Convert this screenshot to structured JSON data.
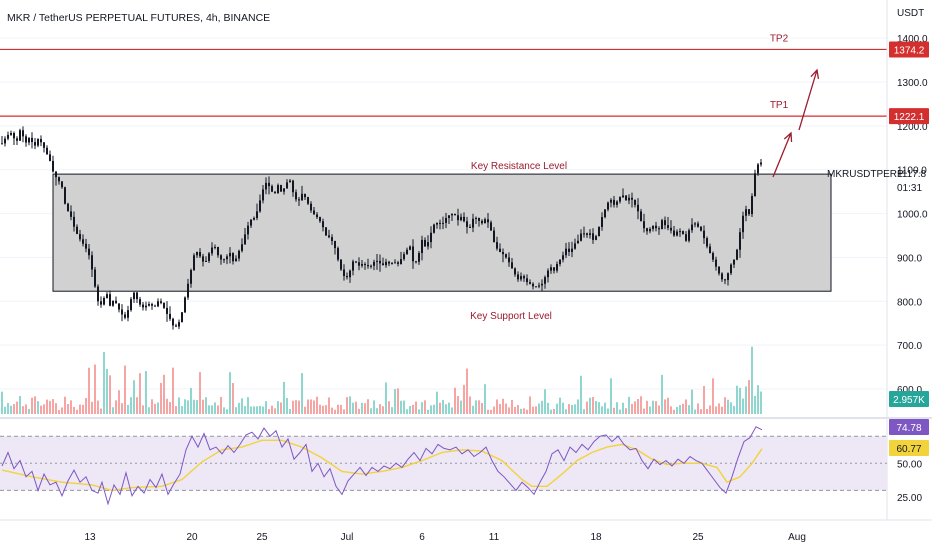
{
  "header": {
    "symbol_title": "MKR / TetherUS PERPETUAL FUTURES, 4h, BINANCE",
    "currency": "USDT"
  },
  "colors": {
    "up": "#26a69a",
    "down": "#ef5350",
    "candle": "#131722",
    "level_line": "#d32f2f",
    "arrow": "#9c1b2e",
    "zone_fill": "#d1d1d1",
    "rsi_line": "#7e57c2",
    "rsi_ma": "#f2d33b",
    "rsi_band": "#ede7f6"
  },
  "chart_data": {
    "type": "candlestick",
    "price_axis_ticks": [
      "1400.0",
      "1300.0",
      "1200.0",
      "1100.0",
      "1000.0",
      "900.0",
      "800.0",
      "700.0",
      "600.0"
    ],
    "time_axis_ticks": [
      "13",
      "20",
      "25",
      "Jul",
      "6",
      "11",
      "18",
      "25",
      "Aug"
    ],
    "price_range": [
      575,
      1455
    ],
    "last_price": {
      "label": "MKRUSDTPERP",
      "value": "1117.8",
      "countdown": "01:31"
    },
    "levels": [
      {
        "name": "TP2",
        "value": 1374.2,
        "label": "1374.2"
      },
      {
        "name": "TP1",
        "value": 1222.1,
        "label": "1222.1"
      }
    ],
    "zone": {
      "top": 1090,
      "bottom": 823,
      "upper_label": "Key Resistance Level",
      "lower_label": "Key Support Level"
    },
    "volume": {
      "last_label": "2.957K"
    },
    "rsi": {
      "ticks": [
        "50.00",
        "25.00"
      ],
      "value": "74.78",
      "ma_value": "60.77",
      "band": [
        30,
        70
      ],
      "range": [
        14,
        82
      ]
    },
    "price_path": [
      [
        0,
        1160
      ],
      [
        5,
        1178
      ],
      [
        10,
        1185
      ],
      [
        14,
        1158
      ],
      [
        18,
        1190
      ],
      [
        24,
        1162
      ],
      [
        28,
        1176
      ],
      [
        32,
        1150
      ],
      [
        36,
        1170
      ],
      [
        40,
        1160
      ],
      [
        44,
        1140
      ],
      [
        48,
        1120
      ],
      [
        52,
        1088
      ],
      [
        56,
        1078
      ],
      [
        60,
        1060
      ],
      [
        64,
        1010
      ],
      [
        68,
        1000
      ],
      [
        72,
        970
      ],
      [
        76,
        948
      ],
      [
        80,
        935
      ],
      [
        84,
        920
      ],
      [
        88,
        900
      ],
      [
        92,
        845
      ],
      [
        96,
        800
      ],
      [
        100,
        790
      ],
      [
        104,
        825
      ],
      [
        108,
        790
      ],
      [
        112,
        805
      ],
      [
        116,
        785
      ],
      [
        120,
        770
      ],
      [
        124,
        760
      ],
      [
        128,
        800
      ],
      [
        132,
        820
      ],
      [
        136,
        800
      ],
      [
        140,
        785
      ],
      [
        144,
        790
      ],
      [
        148,
        795
      ],
      [
        152,
        785
      ],
      [
        156,
        800
      ],
      [
        160,
        795
      ],
      [
        164,
        775
      ],
      [
        168,
        760
      ],
      [
        172,
        740
      ],
      [
        176,
        745
      ],
      [
        180,
        775
      ],
      [
        184,
        820
      ],
      [
        188,
        860
      ],
      [
        192,
        905
      ],
      [
        196,
        915
      ],
      [
        200,
        890
      ],
      [
        204,
        892
      ],
      [
        208,
        915
      ],
      [
        212,
        930
      ],
      [
        216,
        905
      ],
      [
        220,
        892
      ],
      [
        224,
        900
      ],
      [
        228,
        910
      ],
      [
        232,
        885
      ],
      [
        236,
        910
      ],
      [
        240,
        930
      ],
      [
        244,
        960
      ],
      [
        248,
        985
      ],
      [
        252,
        990
      ],
      [
        256,
        1010
      ],
      [
        260,
        1050
      ],
      [
        264,
        1070
      ],
      [
        268,
        1060
      ],
      [
        272,
        1040
      ],
      [
        276,
        1065
      ],
      [
        280,
        1045
      ],
      [
        284,
        1070
      ],
      [
        288,
        1075
      ],
      [
        292,
        1040
      ],
      [
        296,
        1025
      ],
      [
        300,
        1045
      ],
      [
        304,
        1035
      ],
      [
        308,
        1010
      ],
      [
        312,
        998
      ],
      [
        316,
        990
      ],
      [
        320,
        975
      ],
      [
        324,
        950
      ],
      [
        328,
        945
      ],
      [
        332,
        930
      ],
      [
        336,
        895
      ],
      [
        340,
        865
      ],
      [
        344,
        850
      ],
      [
        348,
        870
      ],
      [
        352,
        898
      ],
      [
        356,
        880
      ],
      [
        360,
        885
      ],
      [
        364,
        882
      ],
      [
        368,
        878
      ],
      [
        372,
        890
      ],
      [
        376,
        893
      ],
      [
        380,
        880
      ],
      [
        384,
        890
      ],
      [
        388,
        885
      ],
      [
        392,
        890
      ],
      [
        396,
        885
      ],
      [
        400,
        900
      ],
      [
        404,
        915
      ],
      [
        408,
        925
      ],
      [
        412,
        880
      ],
      [
        416,
        900
      ],
      [
        420,
        940
      ],
      [
        424,
        920
      ],
      [
        428,
        950
      ],
      [
        432,
        975
      ],
      [
        436,
        980
      ],
      [
        440,
        975
      ],
      [
        444,
        990
      ],
      [
        448,
        998
      ],
      [
        452,
        1000
      ],
      [
        456,
        985
      ],
      [
        460,
        995
      ],
      [
        464,
        970
      ],
      [
        468,
        968
      ],
      [
        472,
        995
      ],
      [
        476,
        985
      ],
      [
        480,
        978
      ],
      [
        484,
        990
      ],
      [
        488,
        970
      ],
      [
        492,
        935
      ],
      [
        496,
        915
      ],
      [
        500,
        910
      ],
      [
        504,
        900
      ],
      [
        508,
        885
      ],
      [
        512,
        865
      ],
      [
        516,
        850
      ],
      [
        520,
        860
      ],
      [
        524,
        845
      ],
      [
        528,
        840
      ],
      [
        532,
        832
      ],
      [
        536,
        835
      ],
      [
        540,
        840
      ],
      [
        544,
        860
      ],
      [
        548,
        880
      ],
      [
        552,
        870
      ],
      [
        556,
        890
      ],
      [
        560,
        900
      ],
      [
        564,
        920
      ],
      [
        568,
        910
      ],
      [
        572,
        930
      ],
      [
        576,
        938
      ],
      [
        580,
        960
      ],
      [
        584,
        950
      ],
      [
        588,
        955
      ],
      [
        592,
        935
      ],
      [
        596,
        962
      ],
      [
        600,
        992
      ],
      [
        604,
        1015
      ],
      [
        608,
        1035
      ],
      [
        612,
        1020
      ],
      [
        616,
        1030
      ],
      [
        620,
        1045
      ],
      [
        624,
        1030
      ],
      [
        628,
        1038
      ],
      [
        632,
        1025
      ],
      [
        636,
        1005
      ],
      [
        640,
        975
      ],
      [
        644,
        958
      ],
      [
        648,
        965
      ],
      [
        652,
        975
      ],
      [
        656,
        958
      ],
      [
        660,
        985
      ],
      [
        664,
        970
      ],
      [
        668,
        965
      ],
      [
        672,
        950
      ],
      [
        676,
        962
      ],
      [
        680,
        958
      ],
      [
        684,
        938
      ],
      [
        688,
        970
      ],
      [
        692,
        980
      ],
      [
        696,
        970
      ],
      [
        700,
        958
      ],
      [
        704,
        930
      ],
      [
        708,
        910
      ],
      [
        712,
        890
      ],
      [
        716,
        868
      ],
      [
        720,
        850
      ],
      [
        724,
        848
      ],
      [
        728,
        880
      ],
      [
        732,
        895
      ],
      [
        736,
        925
      ],
      [
        740,
        990
      ],
      [
        744,
        1010
      ],
      [
        748,
        995
      ],
      [
        752,
        1085
      ],
      [
        756,
        1112
      ],
      [
        760,
        1117.8
      ]
    ],
    "rsi_path": [
      [
        0,
        48
      ],
      [
        6,
        58
      ],
      [
        12,
        46
      ],
      [
        18,
        52
      ],
      [
        24,
        40
      ],
      [
        30,
        44
      ],
      [
        36,
        30
      ],
      [
        42,
        42
      ],
      [
        48,
        34
      ],
      [
        54,
        36
      ],
      [
        60,
        26
      ],
      [
        66,
        37
      ],
      [
        72,
        45
      ],
      [
        78,
        36
      ],
      [
        84,
        40
      ],
      [
        90,
        30
      ],
      [
        96,
        28
      ],
      [
        100,
        36
      ],
      [
        106,
        20
      ],
      [
        112,
        34
      ],
      [
        118,
        27
      ],
      [
        124,
        43
      ],
      [
        130,
        26
      ],
      [
        136,
        33
      ],
      [
        142,
        28
      ],
      [
        148,
        38
      ],
      [
        154,
        32
      ],
      [
        160,
        42
      ],
      [
        166,
        27
      ],
      [
        172,
        35
      ],
      [
        178,
        42
      ],
      [
        184,
        60
      ],
      [
        190,
        70
      ],
      [
        196,
        62
      ],
      [
        202,
        72
      ],
      [
        208,
        60
      ],
      [
        214,
        62
      ],
      [
        220,
        57
      ],
      [
        226,
        63
      ],
      [
        232,
        58
      ],
      [
        238,
        64
      ],
      [
        244,
        71
      ],
      [
        250,
        73
      ],
      [
        256,
        68
      ],
      [
        262,
        76
      ],
      [
        268,
        70
      ],
      [
        274,
        74
      ],
      [
        280,
        62
      ],
      [
        286,
        68
      ],
      [
        292,
        53
      ],
      [
        298,
        58
      ],
      [
        304,
        64
      ],
      [
        310,
        44
      ],
      [
        316,
        50
      ],
      [
        322,
        40
      ],
      [
        328,
        46
      ],
      [
        334,
        33
      ],
      [
        340,
        27
      ],
      [
        346,
        37
      ],
      [
        352,
        42
      ],
      [
        358,
        47
      ],
      [
        364,
        41
      ],
      [
        370,
        47
      ],
      [
        376,
        44
      ],
      [
        382,
        48
      ],
      [
        388,
        46
      ],
      [
        394,
        50
      ],
      [
        400,
        47
      ],
      [
        406,
        53
      ],
      [
        412,
        58
      ],
      [
        418,
        52
      ],
      [
        424,
        61
      ],
      [
        430,
        57
      ],
      [
        436,
        64
      ],
      [
        442,
        61
      ],
      [
        448,
        60
      ],
      [
        454,
        62
      ],
      [
        460,
        57
      ],
      [
        466,
        60
      ],
      [
        472,
        55
      ],
      [
        478,
        58
      ],
      [
        484,
        62
      ],
      [
        490,
        52
      ],
      [
        496,
        44
      ],
      [
        502,
        40
      ],
      [
        508,
        35
      ],
      [
        514,
        30
      ],
      [
        520,
        36
      ],
      [
        526,
        32
      ],
      [
        532,
        27
      ],
      [
        538,
        36
      ],
      [
        544,
        44
      ],
      [
        550,
        57
      ],
      [
        556,
        60
      ],
      [
        562,
        52
      ],
      [
        568,
        62
      ],
      [
        574,
        58
      ],
      [
        580,
        64
      ],
      [
        586,
        60
      ],
      [
        592,
        66
      ],
      [
        598,
        70
      ],
      [
        604,
        71
      ],
      [
        610,
        66
      ],
      [
        616,
        70
      ],
      [
        622,
        64
      ],
      [
        628,
        60
      ],
      [
        634,
        61
      ],
      [
        640,
        52
      ],
      [
        646,
        46
      ],
      [
        652,
        53
      ],
      [
        658,
        49
      ],
      [
        664,
        52
      ],
      [
        670,
        48
      ],
      [
        676,
        53
      ],
      [
        682,
        50
      ],
      [
        688,
        55
      ],
      [
        694,
        52
      ],
      [
        700,
        50
      ],
      [
        706,
        44
      ],
      [
        712,
        38
      ],
      [
        718,
        32
      ],
      [
        724,
        28
      ],
      [
        730,
        40
      ],
      [
        736,
        54
      ],
      [
        742,
        66
      ],
      [
        748,
        69
      ],
      [
        754,
        77
      ],
      [
        760,
        74.78
      ]
    ],
    "rsi_ma_path": [
      [
        0,
        45
      ],
      [
        30,
        40
      ],
      [
        60,
        36
      ],
      [
        90,
        34
      ],
      [
        110,
        30
      ],
      [
        130,
        32
      ],
      [
        160,
        33
      ],
      [
        180,
        38
      ],
      [
        200,
        51
      ],
      [
        220,
        60
      ],
      [
        240,
        62
      ],
      [
        260,
        67
      ],
      [
        280,
        67
      ],
      [
        300,
        62
      ],
      [
        320,
        54
      ],
      [
        340,
        44
      ],
      [
        360,
        42
      ],
      [
        380,
        44
      ],
      [
        400,
        47
      ],
      [
        420,
        52
      ],
      [
        440,
        58
      ],
      [
        460,
        60
      ],
      [
        480,
        59
      ],
      [
        500,
        52
      ],
      [
        510,
        45
      ],
      [
        520,
        38
      ],
      [
        530,
        33
      ],
      [
        545,
        33
      ],
      [
        560,
        42
      ],
      [
        575,
        52
      ],
      [
        590,
        58
      ],
      [
        605,
        62
      ],
      [
        620,
        64
      ],
      [
        635,
        60
      ],
      [
        650,
        53
      ],
      [
        665,
        49
      ],
      [
        680,
        50
      ],
      [
        700,
        50
      ],
      [
        715,
        47
      ],
      [
        725,
        36
      ],
      [
        738,
        40
      ],
      [
        750,
        50
      ],
      [
        760,
        60.77
      ]
    ]
  }
}
